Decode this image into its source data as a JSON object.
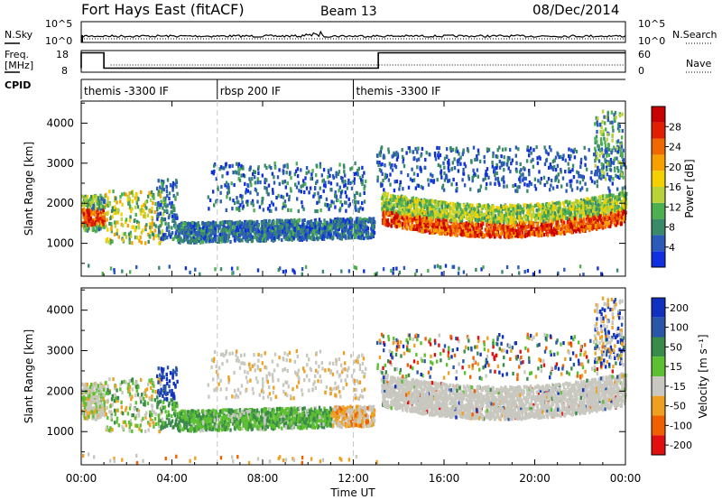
{
  "header": {
    "station": "Fort Hays East (fitACF)",
    "beam": "Beam 13",
    "date": "08/Dec/2014"
  },
  "top_strip": {
    "nsky_label": "N.Sky",
    "left_ticks": [
      "10^5",
      "10^0"
    ],
    "right_ticks": [
      "10^5",
      "10^0"
    ],
    "nsearch_label": "N.Search"
  },
  "freq_strip": {
    "label_line1": "Freq.",
    "label_line2": "[MHz]",
    "left_ticks": [
      "18",
      "8"
    ],
    "right_ticks": [
      "60",
      "0"
    ],
    "nave_label": "Nave"
  },
  "cpid": {
    "label": "CPID",
    "segments": [
      {
        "start_h": 0,
        "end_h": 6,
        "text": "themis -3300 IF"
      },
      {
        "start_h": 6,
        "end_h": 12,
        "text": "rbsp 200 IF"
      },
      {
        "start_h": 12,
        "end_h": 24,
        "text": "themis -3300 IF"
      }
    ]
  },
  "x_axis": {
    "label": "Time UT",
    "ticks": [
      "00:00",
      "04:00",
      "08:00",
      "12:00",
      "16:00",
      "20:00",
      "00:00"
    ],
    "tick_hours": [
      0,
      4,
      8,
      12,
      16,
      20,
      24
    ],
    "dashed_hours": [
      6,
      12
    ]
  },
  "chart_data": [
    {
      "type": "heatmap",
      "ylabel": "Slant Range [km]",
      "yticks": [
        "1000",
        "2000",
        "3000",
        "4000"
      ],
      "ytick_values": [
        1000,
        2000,
        3000,
        4000
      ],
      "ylim": [
        180,
        4550
      ],
      "xlim_hours": [
        0,
        24
      ],
      "colorbar_label": "Power [dB]",
      "colorbar_ticks": [
        "4",
        "8",
        "12",
        "16",
        "20",
        "24",
        "28"
      ],
      "colorbar_colors": [
        "#1030e0",
        "#2c5ab8",
        "#3a8a6a",
        "#4caf50",
        "#b8d238",
        "#f5d000",
        "#f7a000",
        "#f06800",
        "#e02000",
        "#c80000"
      ],
      "features": [
        {
          "name": "morning-band",
          "t0": 0.1,
          "t1": 1.0,
          "r0": 1450,
          "r1": 1850,
          "level": 0.75
        },
        {
          "name": "mid-band",
          "t0": 4.2,
          "t1": 13.0,
          "r0": 1050,
          "r1": 1500,
          "level": 0.2
        },
        {
          "name": "evening-band",
          "t0": 13.2,
          "t1": 24.0,
          "r0": 1100,
          "r1": 2000,
          "level": 0.8
        }
      ]
    },
    {
      "type": "heatmap",
      "ylabel": "Slant Range [km]",
      "yticks": [
        "1000",
        "2000",
        "3000",
        "4000"
      ],
      "ytick_values": [
        1000,
        2000,
        3000,
        4000
      ],
      "ylim": [
        180,
        4550
      ],
      "xlim_hours": [
        0,
        24
      ],
      "colorbar_label": "Velocity [m s⁻¹]",
      "colorbar_ticks": [
        "200",
        "100",
        "50",
        "15",
        "-15",
        "-50",
        "-100",
        "-200"
      ],
      "colorbar_colors": [
        "#1030c0",
        "#2a56a8",
        "#3a8a4a",
        "#5cc030",
        "#c8c8c0",
        "#f0a020",
        "#f06000",
        "#e01010"
      ],
      "features": [
        {
          "name": "ground-scatter",
          "t0": 13.2,
          "t1": 24.0,
          "r0": 1300,
          "r1": 2300,
          "level": 0.0
        },
        {
          "name": "mid-flow",
          "t0": 4.2,
          "t1": 12.8,
          "r0": 1000,
          "r1": 1500,
          "level": 0.5
        }
      ]
    }
  ],
  "colors": {
    "plot_border": "#000000",
    "dashed_line": "#c8c8c8"
  }
}
